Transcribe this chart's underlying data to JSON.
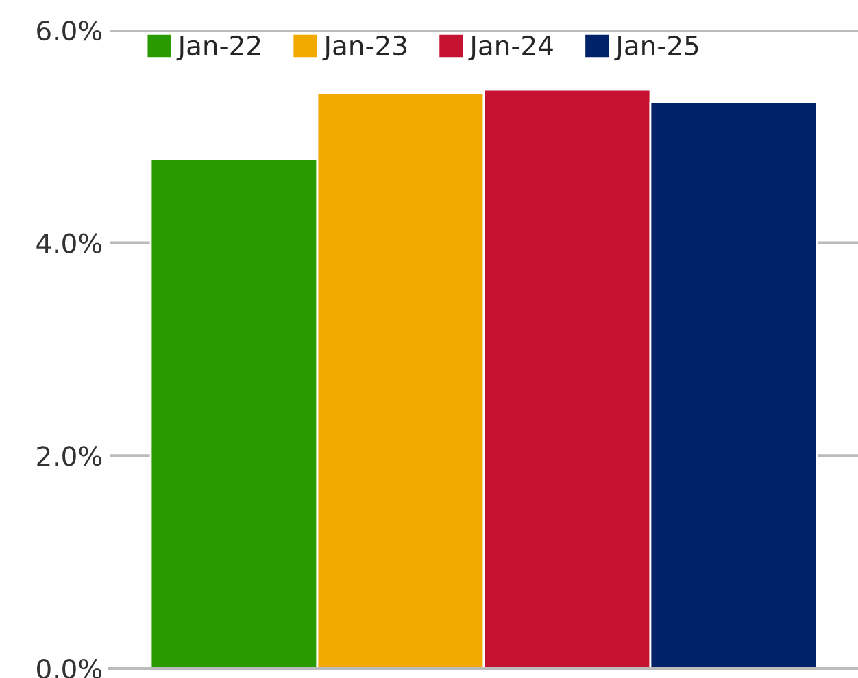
{
  "chart_data": {
    "type": "bar",
    "categories": [
      null
    ],
    "series": [
      {
        "name": "Jan-22",
        "color": "#299b00",
        "values": [
          4.79
        ]
      },
      {
        "name": "Jan-23",
        "color": "#f2a900",
        "values": [
          5.41
        ]
      },
      {
        "name": "Jan-24",
        "color": "#c41230",
        "values": [
          5.44
        ]
      },
      {
        "name": "Jan-25",
        "color": "#012169",
        "values": [
          5.32
        ]
      }
    ],
    "ylim": [
      0,
      6
    ],
    "yticks": [
      {
        "value": 0,
        "label": "0.0%"
      },
      {
        "value": 2,
        "label": "2.0%"
      },
      {
        "value": 4,
        "label": "4.0%"
      },
      {
        "value": 6,
        "label": "6.0%"
      }
    ],
    "grid": "y",
    "legend": "top left"
  }
}
